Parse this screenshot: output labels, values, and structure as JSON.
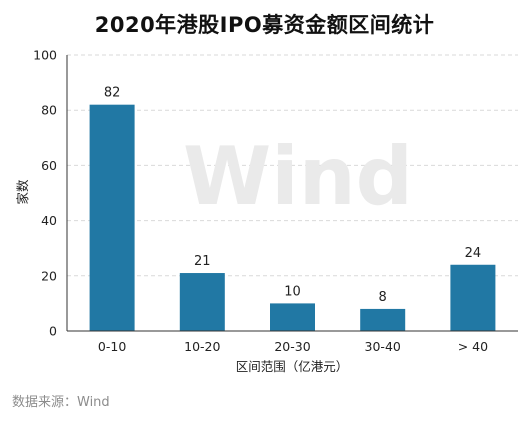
{
  "chart_data": {
    "type": "bar",
    "title": "2020年港股IPO募资金额区间统计",
    "xlabel": "区间范围（亿港元）",
    "ylabel": "家数",
    "categories": [
      "0-10",
      "10-20",
      "20-30",
      "30-40",
      "> 40"
    ],
    "values": [
      82,
      21,
      10,
      8,
      24
    ],
    "ylim": [
      0,
      100
    ],
    "yticks": [
      0,
      20,
      40,
      60,
      80,
      100
    ],
    "grid": "horizontal dashed",
    "bar_color": "#2178a4",
    "watermark": "Wind"
  },
  "source_note": "数据来源：Wind"
}
